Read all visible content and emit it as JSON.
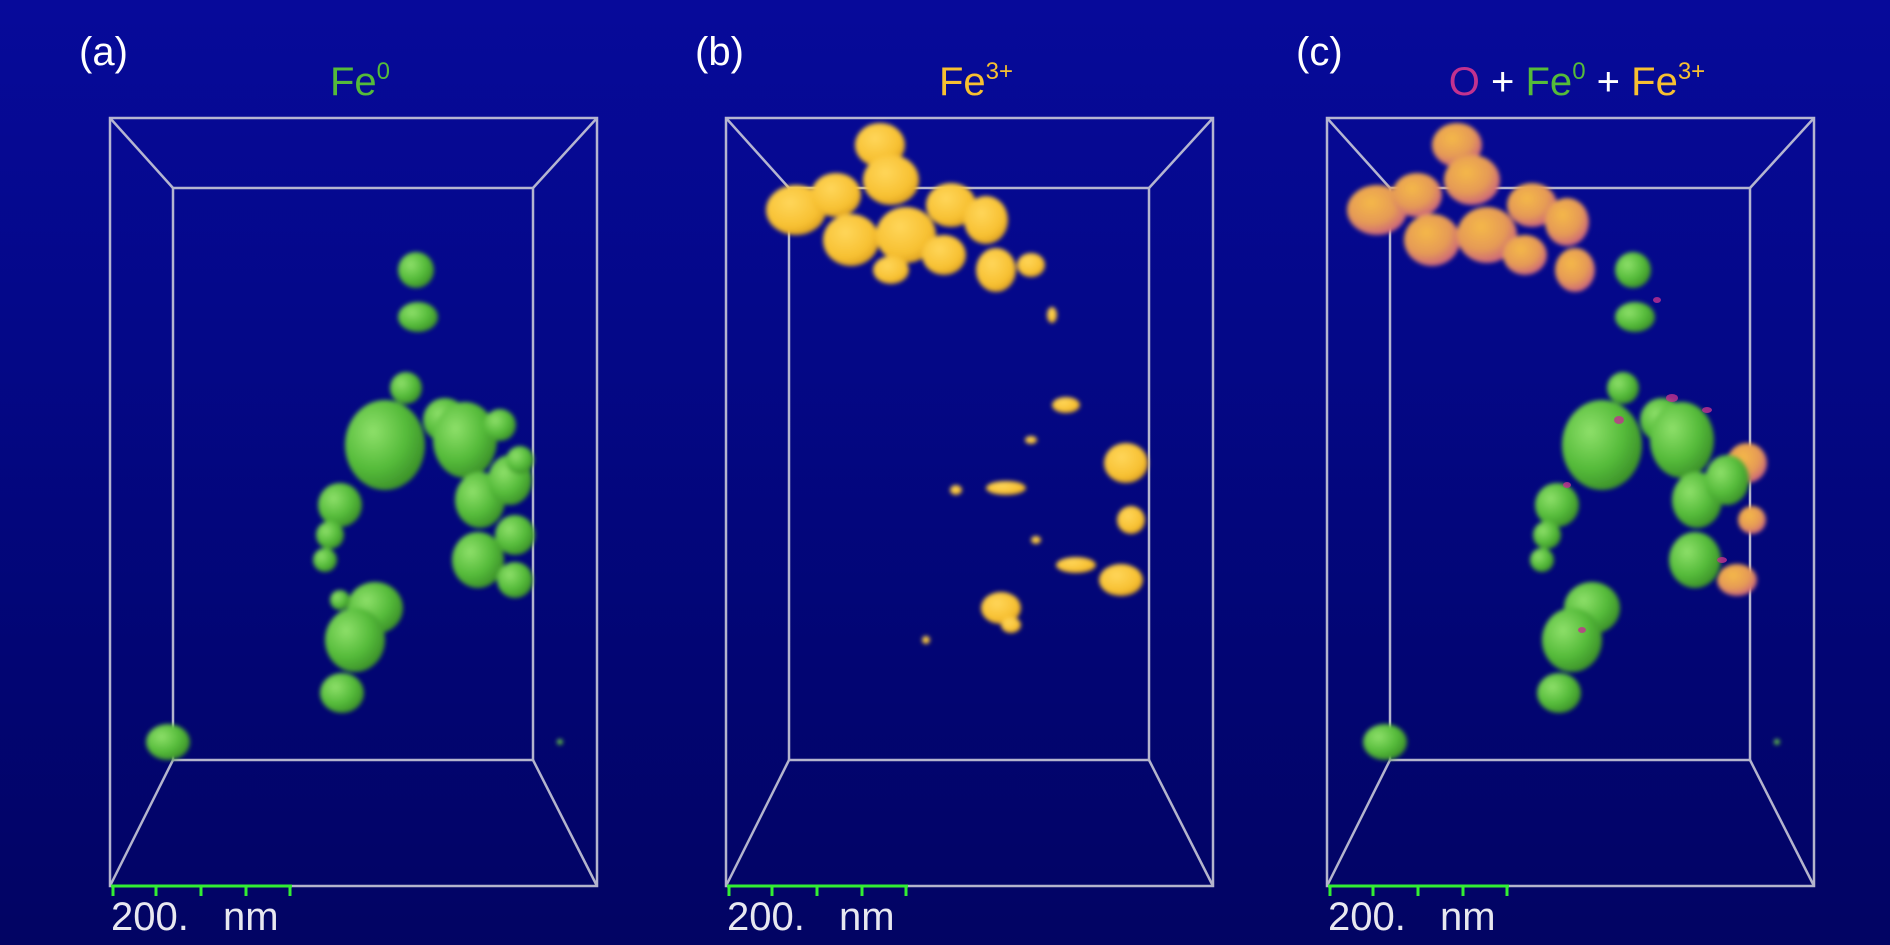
{
  "figure": {
    "panels": [
      {
        "label": "(a)",
        "title": [
          {
            "base": "Fe",
            "sup": "0",
            "color": "#55bb3a"
          }
        ],
        "scale_number": "200.",
        "scale_unit": "nm",
        "scale_bar_color": "#33ee33"
      },
      {
        "label": "(b)",
        "title": [
          {
            "base": "Fe",
            "sup": "3+",
            "color": "#f7c031"
          }
        ],
        "scale_number": "200.",
        "scale_unit": "nm",
        "scale_bar_color": "#33ee33"
      },
      {
        "label": "(c)",
        "title": [
          {
            "base": "O",
            "sup": "",
            "color": "#c2328f"
          },
          {
            "base": " + ",
            "sup": "",
            "color": "#ffffff"
          },
          {
            "base": "Fe",
            "sup": "0",
            "color": "#55bb3a"
          },
          {
            "base": " + ",
            "sup": "",
            "color": "#ffffff"
          },
          {
            "base": "Fe",
            "sup": "3+",
            "color": "#f7c031"
          }
        ],
        "scale_number": "200.",
        "scale_unit": "nm",
        "scale_bar_color": "#33ee33"
      }
    ],
    "colors": {
      "background_top": "#070a9a",
      "background_bottom": "#020463",
      "box_edges": "#c8c8d8",
      "fe0_particles": "#55bb3a",
      "fe3_particles": "#f7c031",
      "oxygen_particles": "#c2328f"
    }
  }
}
